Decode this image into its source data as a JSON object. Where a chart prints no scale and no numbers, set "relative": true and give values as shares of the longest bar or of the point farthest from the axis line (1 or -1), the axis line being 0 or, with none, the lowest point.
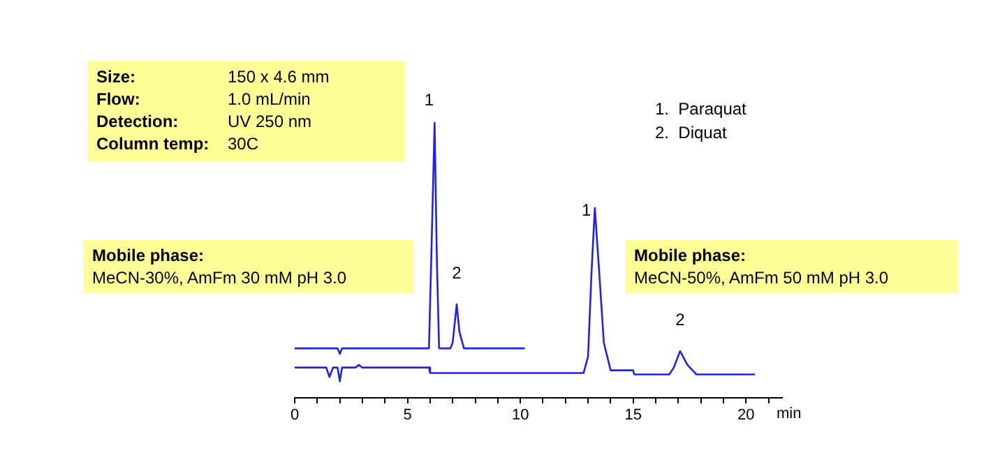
{
  "chart_data": {
    "type": "line",
    "relative": true,
    "xlabel": "min",
    "xlim": [
      0,
      21.6
    ],
    "xticks": [
      0,
      {
        "value": 1,
        "label": null
      },
      {
        "value": 2,
        "label": null
      },
      {
        "value": 3,
        "label": null
      },
      {
        "value": 4,
        "label": null
      },
      5,
      {
        "value": 6,
        "label": null
      },
      {
        "value": 7,
        "label": null
      },
      {
        "value": 8,
        "label": null
      },
      {
        "value": 9,
        "label": null
      },
      10,
      {
        "value": 11,
        "label": null
      },
      {
        "value": 12,
        "label": null
      },
      {
        "value": 13,
        "label": null
      },
      {
        "value": 14,
        "label": null
      },
      15,
      {
        "value": 16,
        "label": null
      },
      {
        "value": 17,
        "label": null
      },
      {
        "value": 18,
        "label": null
      },
      {
        "value": 19,
        "label": null
      },
      20,
      {
        "value": 21,
        "label": null
      }
    ],
    "marker": "none",
    "line_style": "solid",
    "series": [
      {
        "color": "#2020f0",
        "x": [
          0,
          1.9,
          2.0,
          2.1,
          5.95,
          6.05,
          6.2,
          6.3,
          6.4,
          6.9,
          7.0,
          7.18,
          7.3,
          7.5,
          10.2
        ],
        "values": [
          0.18,
          0.18,
          0.16,
          0.18,
          0.18,
          0.5,
          1,
          0.5,
          0.18,
          0.18,
          0.2,
          0.34,
          0.24,
          0.18,
          0.18
        ]
      },
      {
        "color": "#2020f0",
        "x": [
          0,
          1.4,
          1.54,
          1.7,
          1.9,
          2.0,
          2.1,
          2.7,
          2.84,
          3.0,
          5.95,
          6.0,
          12.8,
          13.0,
          13.15,
          13.3,
          13.5,
          13.7,
          14.0,
          15.0,
          15.05,
          16.6,
          16.8,
          17.08,
          17.4,
          17.8,
          20.4
        ],
        "values": [
          0.11,
          0.11,
          0.076,
          0.11,
          0.11,
          0.06,
          0.11,
          0.11,
          0.12,
          0.11,
          0.11,
          0.09,
          0.09,
          0.15,
          0.45,
          0.69,
          0.45,
          0.2,
          0.1,
          0.1,
          0.085,
          0.085,
          0.11,
          0.17,
          0.12,
          0.085,
          0.085
        ]
      }
    ],
    "annotations": [
      {
        "text": "1",
        "x": 6.2,
        "y": 1
      },
      {
        "text": "2",
        "x": 7.18,
        "y": 0.34
      },
      {
        "text": "1",
        "x": 13.3,
        "y": 0.69
      },
      {
        "text": "2",
        "x": 17.08,
        "y": 0.17
      },
      "1.  Paraquat",
      "2.  Diquat",
      "Size: 150 x 4.6 mm",
      "Flow: 1.0 mL/min",
      "Detection: UV 250 nm",
      "Column temp: 30C",
      "Mobile phase:",
      "MeCN-30%, AmFm 30 mM pH 3.0",
      "Mobile phase:",
      "MeCN-50%, AmFm 50 mM pH 3.0"
    ]
  }
}
